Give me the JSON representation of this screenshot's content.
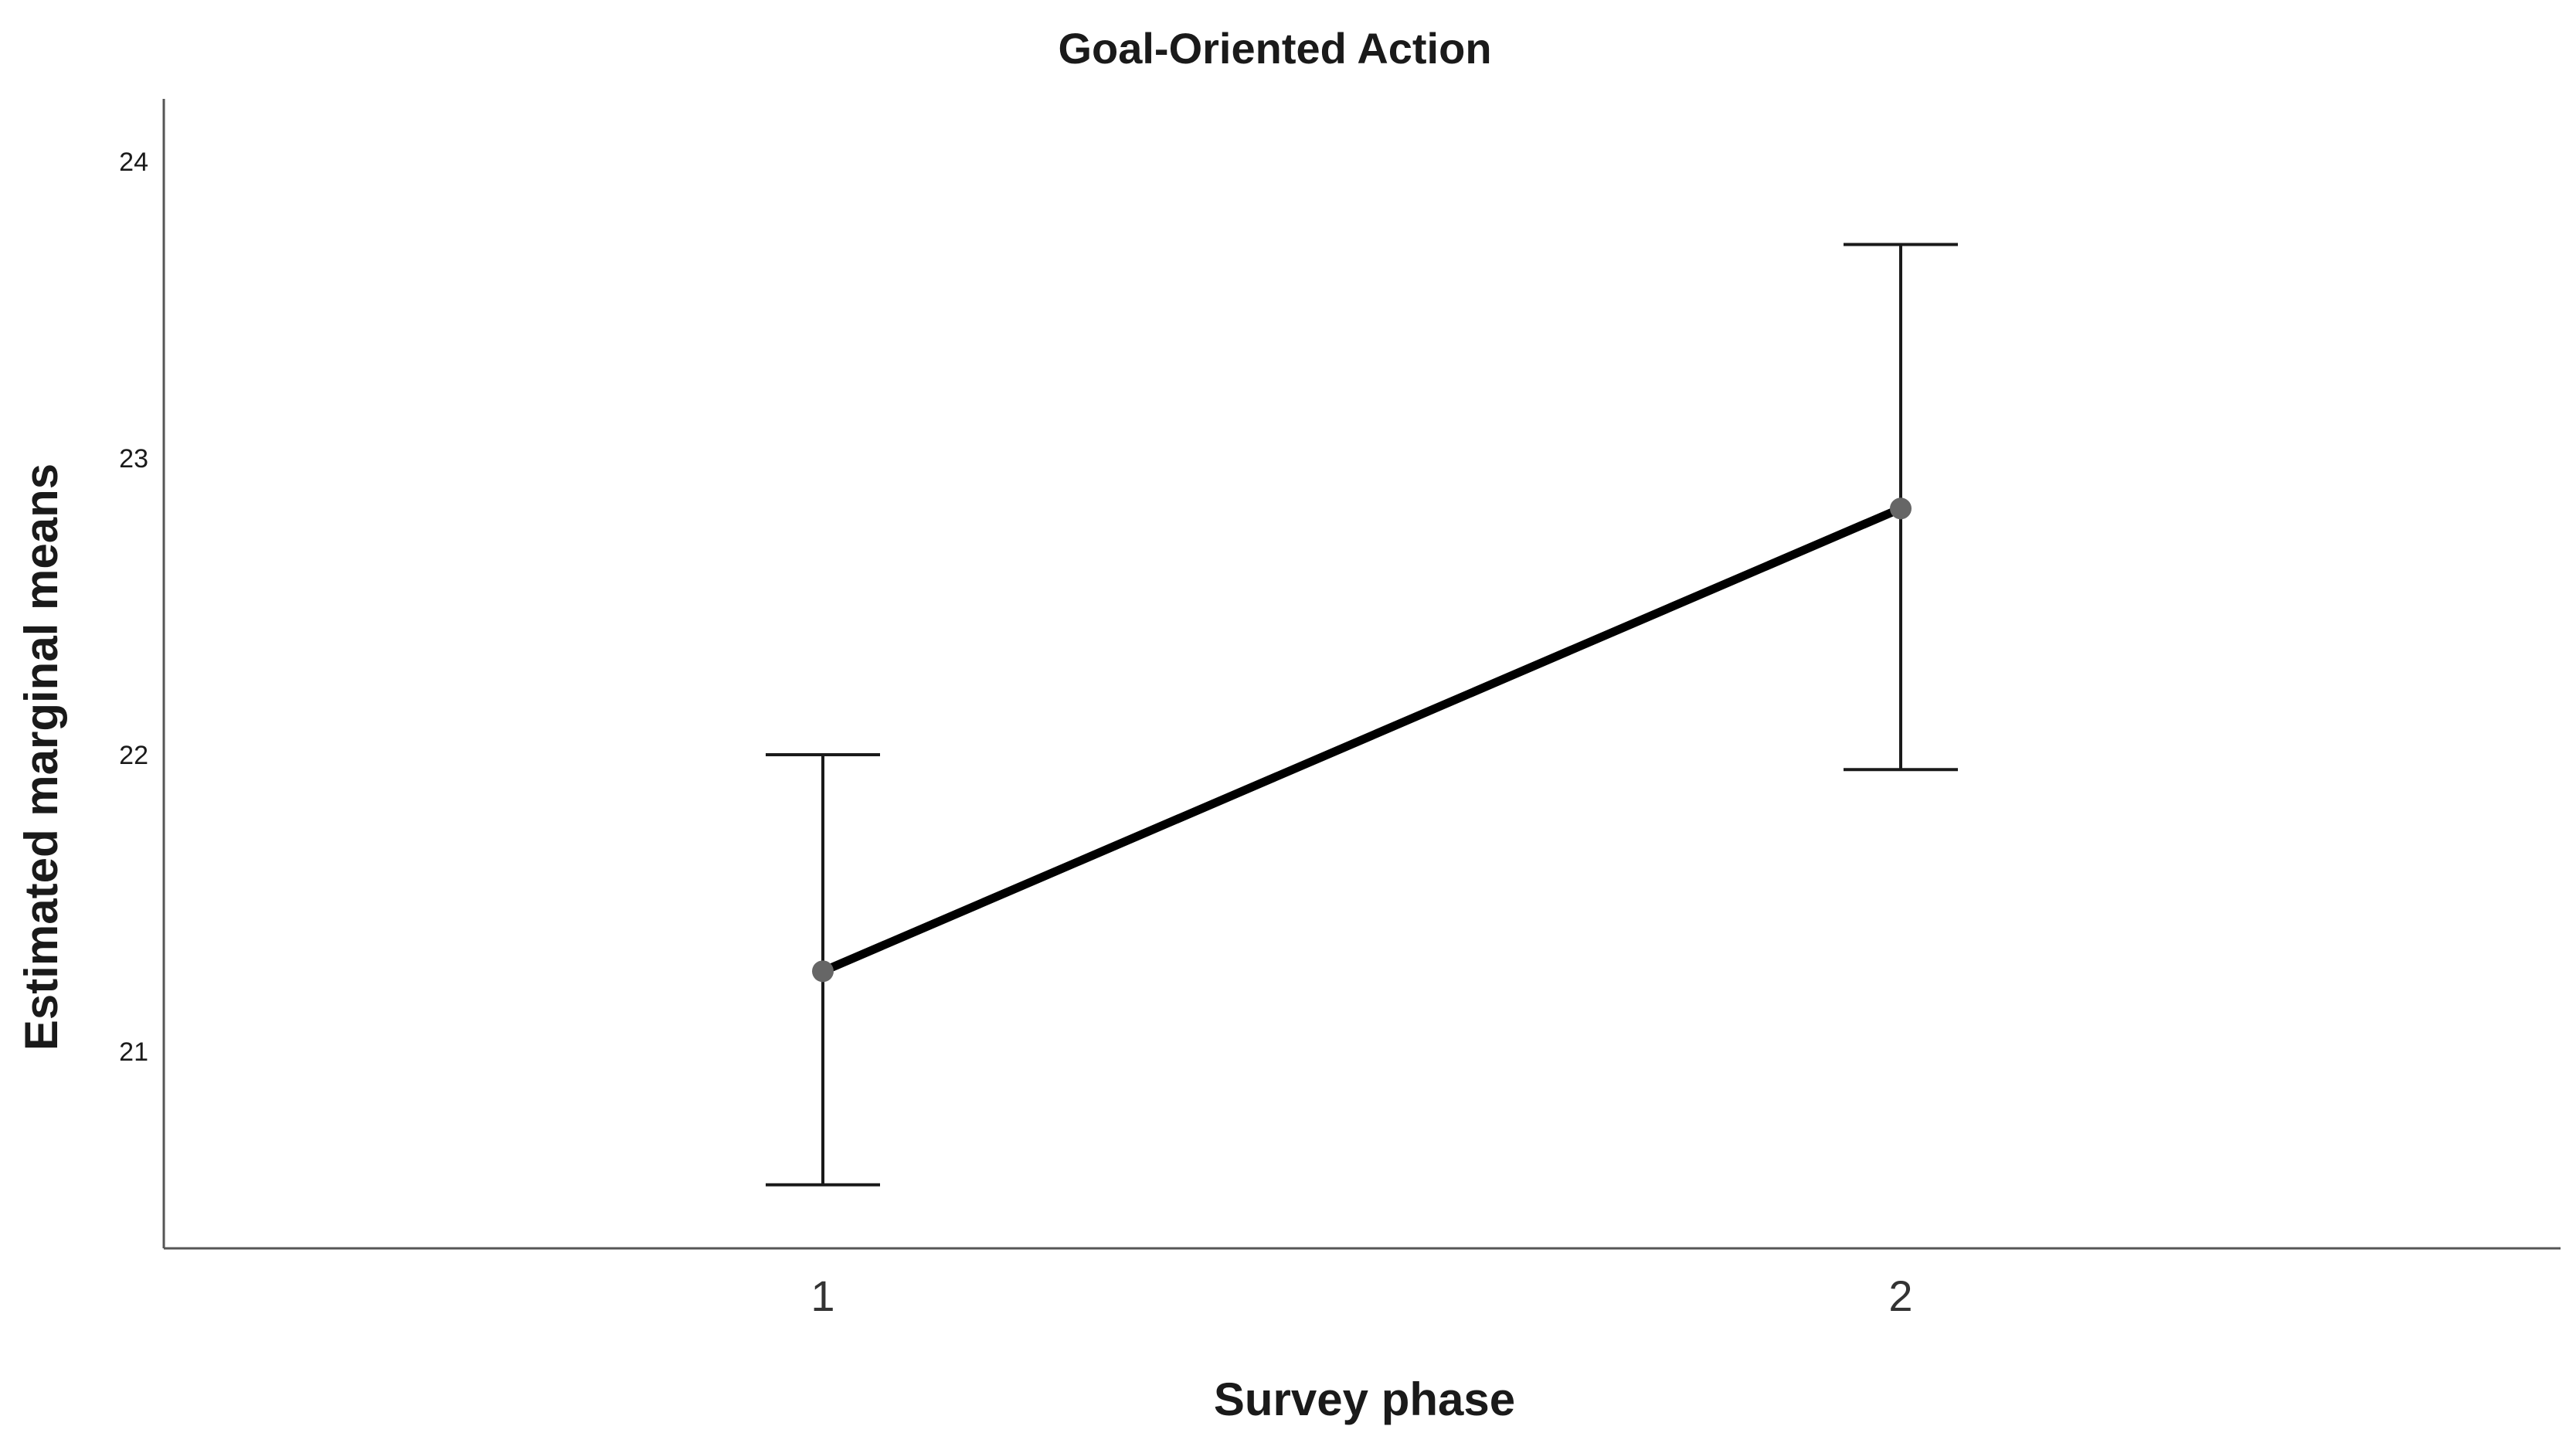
{
  "chart_data": {
    "type": "line",
    "title": "Goal-Oriented Action",
    "xlabel": "Survey phase",
    "ylabel": "Estimated marginal means",
    "categories": [
      "1",
      "2"
    ],
    "series": [
      {
        "values": [
          21.27,
          22.83
        ],
        "error_low": [
          20.55,
          21.95
        ],
        "error_high": [
          22.0,
          23.72
        ]
      }
    ],
    "yticks": [
      21,
      22,
      23,
      24
    ],
    "ylim": [
      20.4,
      24.25
    ],
    "grid": false,
    "legend": "none",
    "colors": {
      "line": "#000000",
      "marker": "#666666",
      "error_bar": "#1a1a1a",
      "axis": "#555555"
    }
  }
}
